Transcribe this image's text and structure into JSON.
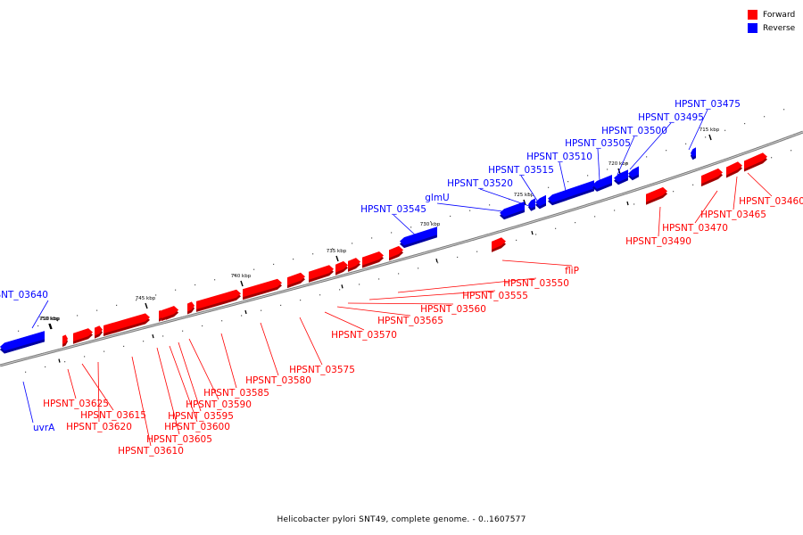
{
  "legend": {
    "forward_label": "Forward",
    "reverse_label": "Reverse",
    "forward_color": "#ff0000",
    "reverse_color": "#0000ff"
  },
  "caption": "Helicobacter pylori SNT49, complete genome. - 0..1607577",
  "ticks": [
    {
      "label": "710 kbp"
    },
    {
      "label": "715 kbp"
    },
    {
      "label": "720 kbp"
    },
    {
      "label": "725 kbp"
    },
    {
      "label": "730 kbp"
    },
    {
      "label": "735 kbp"
    },
    {
      "label": "740 kbp"
    },
    {
      "label": "745 kbp"
    },
    {
      "label": "750 kbp"
    }
  ],
  "genes": [
    {
      "name": "uvrA",
      "strand": "reverse"
    },
    {
      "name": "HPSNT_03640",
      "strand": "reverse"
    },
    {
      "name": "HPSNT_03625",
      "strand": "forward"
    },
    {
      "name": "HPSNT_03620",
      "strand": "forward"
    },
    {
      "name": "HPSNT_03615",
      "strand": "forward"
    },
    {
      "name": "HPSNT_03610",
      "strand": "forward"
    },
    {
      "name": "HPSNT_03605",
      "strand": "forward"
    },
    {
      "name": "HPSNT_03600",
      "strand": "forward"
    },
    {
      "name": "HPSNT_03595",
      "strand": "forward"
    },
    {
      "name": "HPSNT_03590",
      "strand": "forward"
    },
    {
      "name": "HPSNT_03585",
      "strand": "forward"
    },
    {
      "name": "HPSNT_03580",
      "strand": "forward"
    },
    {
      "name": "HPSNT_03575",
      "strand": "forward"
    },
    {
      "name": "HPSNT_03570",
      "strand": "forward"
    },
    {
      "name": "HPSNT_03565",
      "strand": "forward"
    },
    {
      "name": "HPSNT_03560",
      "strand": "forward"
    },
    {
      "name": "HPSNT_03555",
      "strand": "forward"
    },
    {
      "name": "HPSNT_03550",
      "strand": "forward"
    },
    {
      "name": "fliP",
      "strand": "forward"
    },
    {
      "name": "HPSNT_03545",
      "strand": "reverse"
    },
    {
      "name": "glmU",
      "strand": "reverse"
    },
    {
      "name": "HPSNT_03520",
      "strand": "reverse"
    },
    {
      "name": "HPSNT_03515",
      "strand": "reverse"
    },
    {
      "name": "HPSNT_03510",
      "strand": "reverse"
    },
    {
      "name": "HPSNT_03505",
      "strand": "reverse"
    },
    {
      "name": "HPSNT_03500",
      "strand": "reverse"
    },
    {
      "name": "HPSNT_03495",
      "strand": "reverse"
    },
    {
      "name": "HPSNT_03475",
      "strand": "reverse"
    },
    {
      "name": "HPSNT_03490",
      "strand": "forward"
    },
    {
      "name": "HPSNT_03470",
      "strand": "forward"
    },
    {
      "name": "HPSNT_03465",
      "strand": "forward"
    },
    {
      "name": "HPSNT_03460",
      "strand": "forward"
    }
  ]
}
